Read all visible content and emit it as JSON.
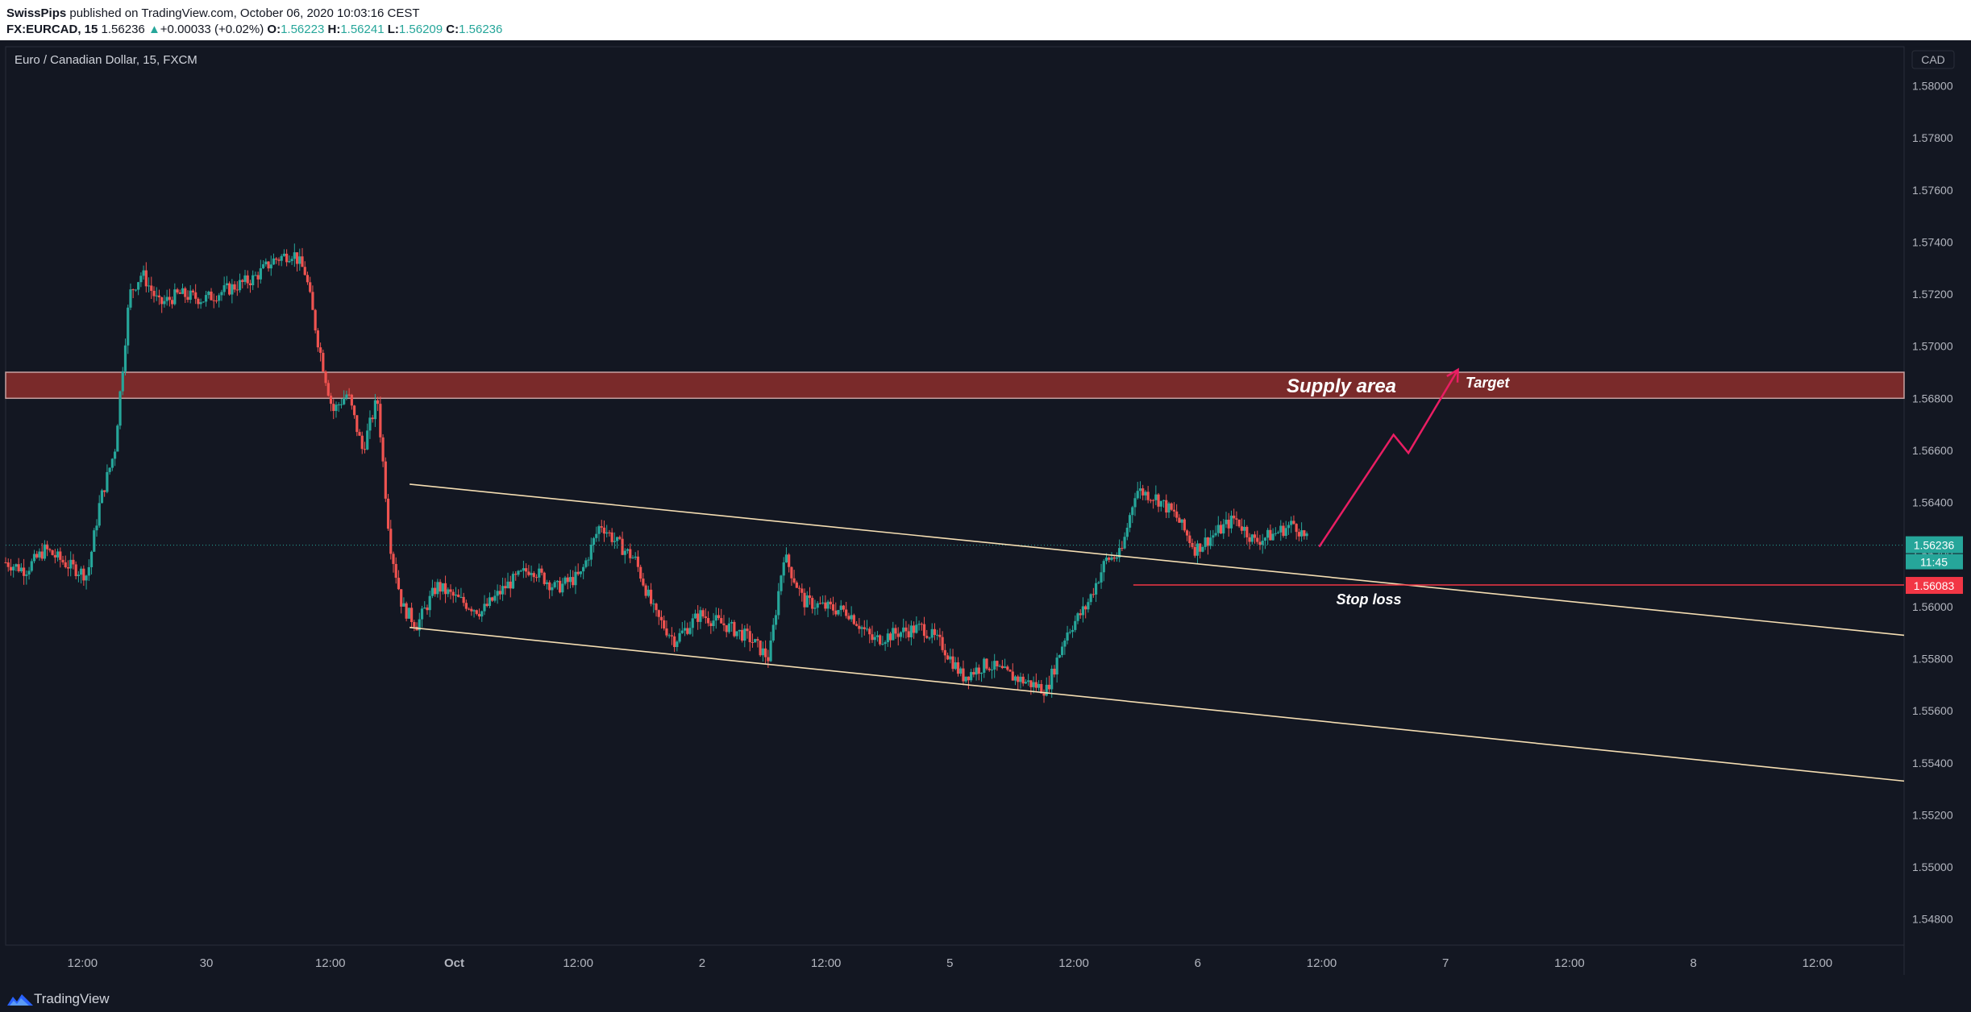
{
  "header": {
    "author": "SwissPips",
    "published_text": "published on TradingView.com, October 06, 2020 10:03:16 CEST",
    "symbol": "FX:EURCAD, 15",
    "last": "1.56236",
    "change_arrow": "▲",
    "change": "+0.00033 (+0.02%)",
    "o_label": "O:",
    "o_value": "1.56223",
    "h_label": "H:",
    "h_value": "1.56241",
    "l_label": "L:",
    "l_value": "1.56209",
    "c_label": "C:",
    "c_value": "1.56236"
  },
  "chart_title": "Euro / Canadian Dollar, 15, FXCM",
  "footer": {
    "brand": "TradingView"
  },
  "colors": {
    "background": "#131722",
    "up_candle": "#26a69a",
    "down_candle": "#ef5350",
    "supply_zone": "#7a2a2a",
    "channel": "#f5deb3",
    "arrow": "#e91e63",
    "stop_line": "#f23645",
    "price_badge": "#26a69a"
  },
  "chart_data": {
    "type": "candlestick",
    "currency_label": "CAD",
    "y_axis": {
      "min": 1.547,
      "max": 1.5815,
      "ticks": [
        1.548,
        1.55,
        1.552,
        1.554,
        1.556,
        1.558,
        1.56,
        1.562,
        1.564,
        1.566,
        1.568,
        1.57,
        1.572,
        1.574,
        1.576,
        1.578,
        1.58
      ],
      "tick_labels": [
        "1.54800",
        "1.55000",
        "1.55200",
        "1.55400",
        "1.55600",
        "1.55800",
        "1.56000",
        "1.56200",
        "1.56400",
        "1.56600",
        "1.56800",
        "1.57000",
        "1.57200",
        "1.57400",
        "1.57600",
        "1.57800",
        "1.58000"
      ]
    },
    "x_axis": {
      "t_min": 0.0,
      "t_max": 7.66,
      "ticks": [
        {
          "t": 0.31,
          "label": "12:00"
        },
        {
          "t": 0.81,
          "label": "30"
        },
        {
          "t": 1.31,
          "label": "12:00"
        },
        {
          "t": 1.81,
          "label": "Oct"
        },
        {
          "t": 2.31,
          "label": "12:00"
        },
        {
          "t": 2.81,
          "label": "2"
        },
        {
          "t": 3.31,
          "label": "12:00"
        },
        {
          "t": 3.81,
          "label": "5"
        },
        {
          "t": 4.31,
          "label": "12:00"
        },
        {
          "t": 4.81,
          "label": "6"
        },
        {
          "t": 5.31,
          "label": "12:00"
        },
        {
          "t": 5.81,
          "label": "7"
        },
        {
          "t": 6.31,
          "label": "12:00"
        },
        {
          "t": 6.81,
          "label": "8"
        },
        {
          "t": 7.31,
          "label": "12:00"
        }
      ]
    },
    "price_path": [
      [
        0.0,
        1.5617
      ],
      [
        0.08,
        1.5614
      ],
      [
        0.16,
        1.5622
      ],
      [
        0.25,
        1.5616
      ],
      [
        0.33,
        1.5612
      ],
      [
        0.38,
        1.564
      ],
      [
        0.44,
        1.566
      ],
      [
        0.5,
        1.572
      ],
      [
        0.55,
        1.5728
      ],
      [
        0.62,
        1.5716
      ],
      [
        0.7,
        1.572
      ],
      [
        0.8,
        1.5718
      ],
      [
        0.9,
        1.5722
      ],
      [
        1.0,
        1.5726
      ],
      [
        1.08,
        1.5733
      ],
      [
        1.16,
        1.5736
      ],
      [
        1.21,
        1.5728
      ],
      [
        1.26,
        1.5702
      ],
      [
        1.32,
        1.5675
      ],
      [
        1.38,
        1.5682
      ],
      [
        1.44,
        1.566
      ],
      [
        1.5,
        1.568
      ],
      [
        1.55,
        1.5625
      ],
      [
        1.6,
        1.56
      ],
      [
        1.66,
        1.5593
      ],
      [
        1.74,
        1.5608
      ],
      [
        1.82,
        1.5603
      ],
      [
        1.92,
        1.5598
      ],
      [
        2.02,
        1.5608
      ],
      [
        2.12,
        1.5615
      ],
      [
        2.22,
        1.5607
      ],
      [
        2.32,
        1.5612
      ],
      [
        2.4,
        1.5632
      ],
      [
        2.46,
        1.5625
      ],
      [
        2.54,
        1.5618
      ],
      [
        2.62,
        1.5597
      ],
      [
        2.7,
        1.5587
      ],
      [
        2.8,
        1.5597
      ],
      [
        2.9,
        1.5593
      ],
      [
        3.0,
        1.5588
      ],
      [
        3.08,
        1.558
      ],
      [
        3.14,
        1.562
      ],
      [
        3.22,
        1.5602
      ],
      [
        3.3,
        1.56
      ],
      [
        3.4,
        1.5598
      ],
      [
        3.5,
        1.5587
      ],
      [
        3.6,
        1.559
      ],
      [
        3.7,
        1.5592
      ],
      [
        3.78,
        1.5585
      ],
      [
        3.86,
        1.5573
      ],
      [
        3.96,
        1.5578
      ],
      [
        4.04,
        1.5574
      ],
      [
        4.12,
        1.5571
      ],
      [
        4.2,
        1.5568
      ],
      [
        4.28,
        1.559
      ],
      [
        4.36,
        1.56
      ],
      [
        4.44,
        1.5618
      ],
      [
        4.5,
        1.562
      ],
      [
        4.56,
        1.5645
      ],
      [
        4.64,
        1.5642
      ],
      [
        4.72,
        1.5635
      ],
      [
        4.8,
        1.5622
      ],
      [
        4.88,
        1.5628
      ],
      [
        4.96,
        1.5634
      ],
      [
        5.04,
        1.5625
      ],
      [
        5.12,
        1.5628
      ],
      [
        5.2,
        1.5632
      ],
      [
        5.26,
        1.5624
      ]
    ],
    "annotations": {
      "supply_area": {
        "label": "Supply area",
        "price_low": 1.568,
        "price_high": 1.569
      },
      "channel_upper": [
        [
          1.63,
          1.5647
        ],
        [
          7.66,
          1.5589
        ]
      ],
      "channel_lower": [
        [
          1.63,
          1.5592
        ],
        [
          7.66,
          1.5533
        ]
      ],
      "stop_loss": {
        "label": "Stop loss",
        "price": 1.56083,
        "t_start": 4.55
      },
      "target": {
        "label": "Target"
      },
      "projection_path": [
        [
          5.3,
          1.5623
        ],
        [
          5.6,
          1.5666
        ],
        [
          5.66,
          1.5659
        ],
        [
          5.86,
          1.5691
        ]
      ]
    },
    "current_price": {
      "value": "1.56236",
      "countdown": "11:45"
    },
    "stop_price_label": "1.56083"
  }
}
